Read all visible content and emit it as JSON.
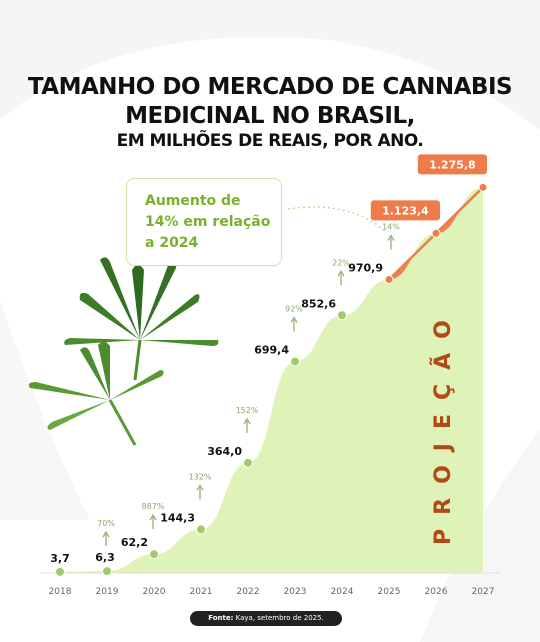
{
  "header": {
    "title_line1": "TAMANHO DO MERCADO DE CANNABIS",
    "title_line2": "MEDICINAL NO BRASIL,",
    "title_line3": "EM MILHÕES DE REAIS, POR ANO."
  },
  "annotation": {
    "line1": "Aumento de",
    "line2": "14% em relação",
    "line3": "a 2024"
  },
  "projection_label": "PROJEÇÃO",
  "footer": {
    "source_label": "Fonte:",
    "source_text": "Kaya, setembro de 2025."
  },
  "colors": {
    "area": "#dff2b8",
    "projection": "#ee8450",
    "marker": "#9fcc6a",
    "arrow": "#8aaa6a",
    "line": "#ee7c4a"
  },
  "icons": [
    "cannabis-leaf-icon",
    "cannabis-leaf-small-icon"
  ],
  "chart_data": {
    "type": "area",
    "x": [
      "2018",
      "2019",
      "2020",
      "2021",
      "2022",
      "2023",
      "2024",
      "2025",
      "2026",
      "2027"
    ],
    "values": [
      3.7,
      6.3,
      62.2,
      144.3,
      364.0,
      699.4,
      852.6,
      970.9,
      1123.4,
      1275.8
    ],
    "value_labels": [
      "3,7",
      "6,3",
      "62,2",
      "144,3",
      "364,0",
      "699,4",
      "852,6",
      "970,9",
      "1.123,4",
      "1.275,8"
    ],
    "growth_labels": [
      "",
      "70%",
      "887%",
      "132%",
      "152%",
      "92%",
      "22%",
      "14%",
      "",
      ""
    ],
    "projection_years": [
      "2026",
      "2027"
    ],
    "ylim": [
      0,
      1300
    ],
    "grid": false,
    "title": "TAMANHO DO MERCADO DE CANNABIS MEDICINAL NO BRASIL, EM MILHÕES DE REAIS, POR ANO."
  }
}
